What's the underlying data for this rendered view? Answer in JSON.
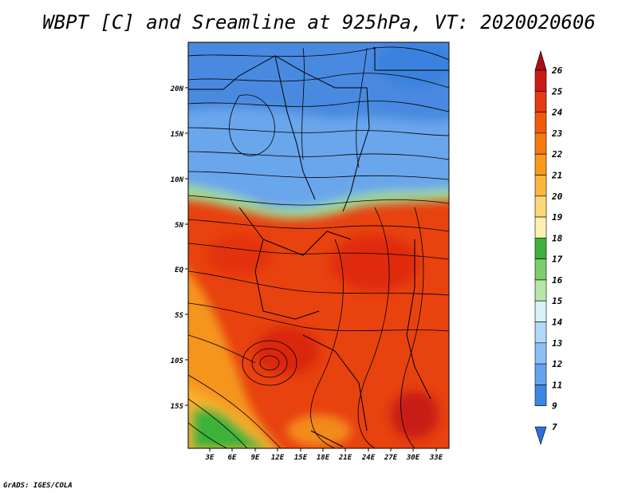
{
  "title": "WBPT [C] and Sreamline at 925hPa, VT: 2020020606",
  "credit": "GrADS: IGES/COLA",
  "map": {
    "lat_labels": [
      "20N",
      "15N",
      "10N",
      "5N",
      "EQ",
      "5S",
      "10S",
      "15S"
    ],
    "lon_labels": [
      "3E",
      "6E",
      "9E",
      "12E",
      "15E",
      "18E",
      "21E",
      "24E",
      "27E",
      "30E",
      "33E"
    ]
  },
  "colorbar": {
    "labels": [
      "26",
      "25",
      "24",
      "23",
      "22",
      "21",
      "20",
      "19",
      "18",
      "17",
      "16",
      "15",
      "14",
      "13",
      "12",
      "11",
      "9",
      "7"
    ],
    "colors": [
      "#a50f15",
      "#cb1b16",
      "#e63a12",
      "#f05a0f",
      "#f57a10",
      "#f99a1a",
      "#fbb640",
      "#fcd776",
      "#fdf0b0",
      "#3fb03f",
      "#7ccd6b",
      "#b8e6a8",
      "#d8f0f8",
      "#b4d8f8",
      "#8cc0f4",
      "#64a4ec",
      "#3c88e0",
      "#2a6fd6"
    ]
  }
}
